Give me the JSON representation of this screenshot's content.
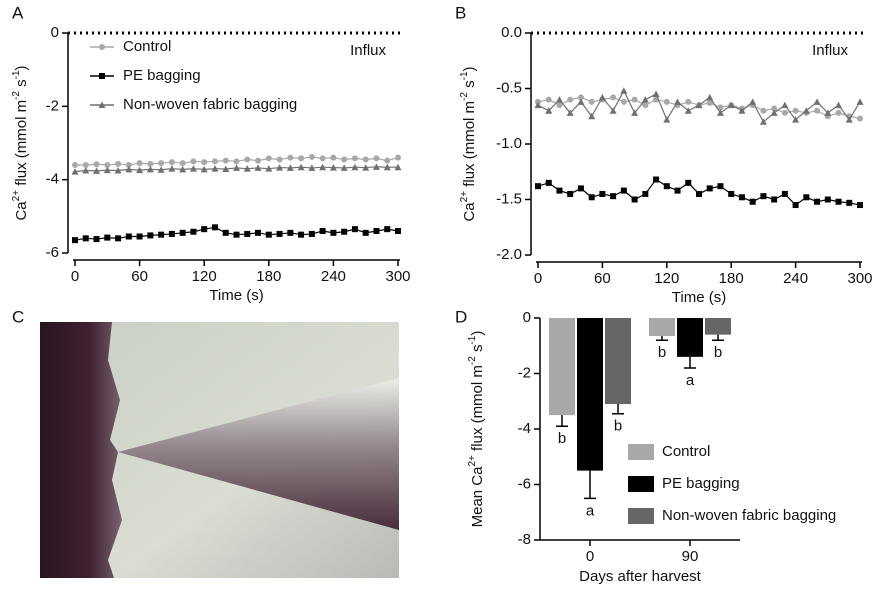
{
  "chart_data": [
    {
      "type": "line",
      "panel_label": "A",
      "xlabel": "Time (s)",
      "ylabel_parts": [
        "Ca",
        "2+",
        " flux (mmol m",
        "-2",
        " s",
        "-1",
        ")"
      ],
      "annotation": "Influx",
      "legend": "upper left",
      "xlim": [
        0,
        300
      ],
      "ylim": [
        -6,
        0
      ],
      "xticks": [
        0,
        60,
        120,
        180,
        240,
        300
      ],
      "yticks": [
        0,
        -2,
        -4,
        -6
      ],
      "x": [
        0,
        10,
        20,
        30,
        40,
        50,
        60,
        70,
        80,
        90,
        100,
        110,
        120,
        130,
        140,
        150,
        160,
        170,
        180,
        190,
        200,
        210,
        220,
        230,
        240,
        250,
        260,
        270,
        280,
        290,
        300
      ],
      "series": [
        {
          "name": "Control",
          "color": "#a8a8a8",
          "marker": "circle",
          "values": [
            -3.6,
            -3.6,
            -3.58,
            -3.6,
            -3.57,
            -3.6,
            -3.55,
            -3.57,
            -3.55,
            -3.52,
            -3.55,
            -3.5,
            -3.52,
            -3.5,
            -3.48,
            -3.5,
            -3.45,
            -3.48,
            -3.42,
            -3.45,
            -3.4,
            -3.42,
            -3.38,
            -3.42,
            -3.4,
            -3.45,
            -3.42,
            -3.45,
            -3.42,
            -3.48,
            -3.4
          ]
        },
        {
          "name": "PE bagging",
          "color": "#000000",
          "marker": "square",
          "values": [
            -5.65,
            -5.6,
            -5.62,
            -5.58,
            -5.6,
            -5.55,
            -5.55,
            -5.52,
            -5.5,
            -5.48,
            -5.45,
            -5.42,
            -5.35,
            -5.3,
            -5.45,
            -5.5,
            -5.48,
            -5.45,
            -5.5,
            -5.48,
            -5.45,
            -5.5,
            -5.48,
            -5.4,
            -5.45,
            -5.42,
            -5.35,
            -5.45,
            -5.4,
            -5.35,
            -5.4
          ]
        },
        {
          "name": "Non-woven fabric bagging",
          "color": "#707070",
          "marker": "triangle",
          "values": [
            -3.78,
            -3.75,
            -3.76,
            -3.74,
            -3.75,
            -3.72,
            -3.74,
            -3.72,
            -3.73,
            -3.7,
            -3.72,
            -3.7,
            -3.72,
            -3.7,
            -3.71,
            -3.68,
            -3.7,
            -3.68,
            -3.7,
            -3.67,
            -3.68,
            -3.66,
            -3.68,
            -3.66,
            -3.67,
            -3.68,
            -3.66,
            -3.67,
            -3.65,
            -3.66,
            -3.66
          ]
        }
      ]
    },
    {
      "type": "line",
      "panel_label": "B",
      "xlabel": "Time (s)",
      "ylabel_parts": [
        "Ca",
        "2+",
        " flux (mmol m",
        "-2",
        " s",
        "-1",
        ")"
      ],
      "annotation": "Influx",
      "xlim": [
        0,
        300
      ],
      "ylim": [
        -2,
        0
      ],
      "xticks": [
        0,
        60,
        120,
        180,
        240,
        300
      ],
      "yticks": [
        {
          "value": 0,
          "label": "0.0"
        },
        {
          "value": -0.5,
          "label": "-0.5"
        },
        {
          "value": -1,
          "label": "-1.0"
        },
        {
          "value": -1.5,
          "label": "-1.5"
        },
        {
          "value": -2,
          "label": "-2.0"
        }
      ],
      "x": [
        0,
        10,
        20,
        30,
        40,
        50,
        60,
        70,
        80,
        90,
        100,
        110,
        120,
        130,
        140,
        150,
        160,
        170,
        180,
        190,
        200,
        210,
        220,
        230,
        240,
        250,
        260,
        270,
        280,
        290,
        300
      ],
      "series": [
        {
          "color": "#a8a8a8",
          "marker": "circle",
          "values": [
            -0.62,
            -0.6,
            -0.65,
            -0.6,
            -0.58,
            -0.62,
            -0.6,
            -0.58,
            -0.62,
            -0.6,
            -0.65,
            -0.6,
            -0.62,
            -0.65,
            -0.62,
            -0.65,
            -0.63,
            -0.67,
            -0.65,
            -0.68,
            -0.65,
            -0.7,
            -0.68,
            -0.72,
            -0.7,
            -0.72,
            -0.7,
            -0.75,
            -0.72,
            -0.75,
            -0.77
          ]
        },
        {
          "color": "#000000",
          "marker": "square",
          "values": [
            -1.38,
            -1.35,
            -1.42,
            -1.45,
            -1.4,
            -1.48,
            -1.45,
            -1.47,
            -1.42,
            -1.5,
            -1.45,
            -1.32,
            -1.38,
            -1.42,
            -1.35,
            -1.45,
            -1.4,
            -1.38,
            -1.45,
            -1.48,
            -1.52,
            -1.47,
            -1.5,
            -1.45,
            -1.55,
            -1.48,
            -1.52,
            -1.5,
            -1.52,
            -1.53,
            -1.55
          ]
        },
        {
          "color": "#707070",
          "marker": "triangle",
          "values": [
            -0.65,
            -0.7,
            -0.6,
            -0.72,
            -0.62,
            -0.75,
            -0.58,
            -0.7,
            -0.52,
            -0.72,
            -0.6,
            -0.55,
            -0.78,
            -0.62,
            -0.7,
            -0.65,
            -0.58,
            -0.72,
            -0.65,
            -0.7,
            -0.62,
            -0.8,
            -0.72,
            -0.65,
            -0.78,
            -0.7,
            -0.62,
            -0.72,
            -0.65,
            -0.78,
            -0.62
          ]
        }
      ]
    },
    {
      "type": "image",
      "panel_label": "C"
    },
    {
      "type": "bar",
      "panel_label": "D",
      "xlabel": "Days after harvest",
      "ylabel_parts": [
        "Mean Ca",
        "2+",
        " flux (mmol m",
        "-2",
        " s",
        "-1",
        ")"
      ],
      "categories": [
        "0",
        "90"
      ],
      "ylim": [
        -8,
        0
      ],
      "yticks": [
        0,
        -2,
        -4,
        -6,
        -8
      ],
      "legend": "lower right",
      "series": [
        {
          "name": "Control",
          "color": "#a8a8a8",
          "values": [
            -3.5,
            -0.65
          ],
          "errors": [
            0.4,
            0.15
          ],
          "letters": [
            "b",
            "b"
          ]
        },
        {
          "name": "PE bagging",
          "color": "#000000",
          "values": [
            -5.5,
            -1.4
          ],
          "errors": [
            1.0,
            0.4
          ],
          "letters": [
            "a",
            "a"
          ]
        },
        {
          "name": "Non-woven fabric bagging",
          "color": "#666666",
          "values": [
            -3.1,
            -0.6
          ],
          "errors": [
            0.35,
            0.2
          ],
          "letters": [
            "b",
            "b"
          ]
        }
      ]
    }
  ]
}
